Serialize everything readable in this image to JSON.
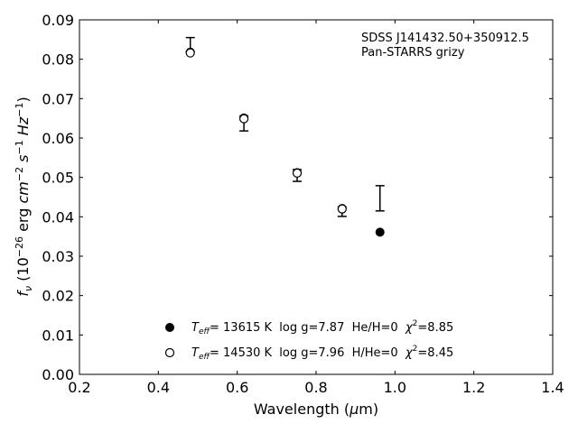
{
  "chart_data": {
    "type": "scatter",
    "title": "",
    "annotation": {
      "line1": "SDSS J141432.50+350912.5",
      "line2": "Pan-STARRS grizy"
    },
    "xlabel": {
      "prefix": "Wavelength (",
      "mu": "μ",
      "suffix": "m)"
    },
    "ylabel": {
      "f": "f",
      "nu": "ν",
      "open": " (10",
      "exp1": "−26",
      "erg": " erg ",
      "cm": "cm",
      "exp2": "−2",
      "s": " s",
      "exp3": "−1",
      "hz": " Hz",
      "exp4": "−1",
      "close": ")"
    },
    "xlim": [
      0.2,
      1.4
    ],
    "ylim": [
      0.0,
      0.09
    ],
    "xticks": [
      "0.2",
      "0.4",
      "0.6",
      "0.8",
      "1.0",
      "1.2",
      "1.4"
    ],
    "yticks": [
      "0.00",
      "0.01",
      "0.02",
      "0.03",
      "0.04",
      "0.05",
      "0.06",
      "0.07",
      "0.08",
      "0.09"
    ],
    "observed": [
      {
        "x": 0.481,
        "y": 0.0837,
        "err": 0.0018
      },
      {
        "x": 0.617,
        "y": 0.0637,
        "err": 0.0019
      },
      {
        "x": 0.752,
        "y": 0.0505,
        "err": 0.0015
      },
      {
        "x": 0.866,
        "y": 0.0413,
        "err": 0.0012
      },
      {
        "x": 0.962,
        "y": 0.0447,
        "err": 0.0032
      }
    ],
    "series": [
      {
        "name": "Teff= 13615 K log g=7.87 He/H=0 χ2=8.85",
        "marker": "filled",
        "x": [
          0.481,
          0.617,
          0.752,
          0.866,
          0.962
        ],
        "values": [
          0.0818,
          0.0651,
          0.0512,
          0.0421,
          0.0361
        ]
      },
      {
        "name": "Teff= 14530 K log g=7.96 H/He=0 χ2=8.45",
        "marker": "open",
        "x": [
          0.481,
          0.617,
          0.752,
          0.866
        ],
        "values": [
          0.0816,
          0.0649,
          0.0511,
          0.042
        ]
      }
    ],
    "legend": {
      "position": "lower-center",
      "entries": [
        {
          "marker": "filled",
          "teff": "T",
          "teff_sub": "eff",
          "temp": "= 13615 K  log g=7.87  He/H=0  ",
          "chi": "χ",
          "chi_sup": "2",
          "chi_val": "=8.85"
        },
        {
          "marker": "open",
          "teff": "T",
          "teff_sub": "eff",
          "temp": "= 14530 K  log g=7.96  H/He=0  ",
          "chi": "χ",
          "chi_sup": "2",
          "chi_val": "=8.45"
        }
      ]
    },
    "grid": false,
    "colors": {
      "marker": "#000000",
      "axes": "#000000"
    }
  }
}
